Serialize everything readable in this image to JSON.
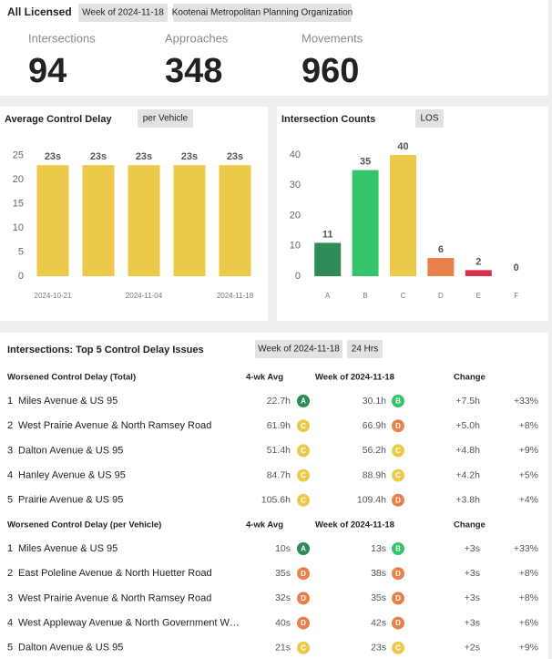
{
  "header": {
    "title": "All Licensed",
    "filters": [
      "Week of 2024-11-18",
      "Kootenai Metropolitan Planning Organization"
    ]
  },
  "kpis": [
    {
      "label": "Intersections",
      "value": 94
    },
    {
      "label": "Approaches",
      "value": 348
    },
    {
      "label": "Movements",
      "value": 960
    }
  ],
  "delay_chart": {
    "type": "bar",
    "title": "Average Control Delay",
    "filter": "per Vehicle",
    "categories": [
      "2024-10-21",
      null,
      "2024-11-04",
      null,
      "2024-11-18"
    ],
    "values": [
      23,
      23,
      23,
      23,
      23
    ],
    "value_labels": [
      "23s",
      "23s",
      "23s",
      "23s",
      "23s"
    ],
    "color": "#ecc94b",
    "ylim": [
      0,
      27
    ],
    "yticks": [
      0,
      5,
      10,
      15,
      20,
      25
    ],
    "grid": false
  },
  "counts_chart": {
    "type": "bar",
    "title": "Intersection Counts",
    "filter": "LOS",
    "categories": [
      "A",
      "B",
      "C",
      "D",
      "E",
      "F"
    ],
    "values": [
      11,
      35,
      40,
      6,
      2,
      0
    ],
    "colors": [
      "#2e8b57",
      "#34c46a",
      "#ecc94b",
      "#e8804a",
      "#d9324a",
      "#9a9a9a"
    ],
    "ylim": [
      0,
      43
    ],
    "yticks": [
      0,
      10,
      20,
      30,
      40
    ],
    "grid": false
  },
  "table": {
    "title": "Intersections: Top 5 Control Delay Issues",
    "filters": [
      "Week of 2024-11-18",
      "24 Hrs"
    ],
    "sections": [
      {
        "columns": [
          "Worsened Control Delay (Total)",
          "4-wk Avg",
          "Week of 2024-11-18",
          "Change"
        ],
        "rows": [
          {
            "rank": 1,
            "name": "Miles Avenue & US 95",
            "avg": "22.7h",
            "avg_los": "A",
            "week": "30.1h",
            "week_los": "B",
            "change": "+7.5h",
            "pct": "+33%"
          },
          {
            "rank": 2,
            "name": "West Prairie Avenue & North Ramsey Road",
            "avg": "61.9h",
            "avg_los": "C",
            "week": "66.9h",
            "week_los": "D",
            "change": "+5.0h",
            "pct": "+8%"
          },
          {
            "rank": 3,
            "name": "Dalton Avenue & US 95",
            "avg": "51.4h",
            "avg_los": "C",
            "week": "56.2h",
            "week_los": "C",
            "change": "+4.8h",
            "pct": "+9%"
          },
          {
            "rank": 4,
            "name": "Hanley Avenue & US 95",
            "avg": "84.7h",
            "avg_los": "C",
            "week": "88.9h",
            "week_los": "C",
            "change": "+4.2h",
            "pct": "+5%"
          },
          {
            "rank": 5,
            "name": "Prairie Avenue & US 95",
            "avg": "105.6h",
            "avg_los": "C",
            "week": "109.4h",
            "week_los": "D",
            "change": "+3.8h",
            "pct": "+4%"
          }
        ]
      },
      {
        "columns": [
          "Worsened Control Delay (per Vehicle)",
          "4-wk Avg",
          "Week of 2024-11-18",
          "Change"
        ],
        "rows": [
          {
            "rank": 1,
            "name": "Miles Avenue & US 95",
            "avg": "10s",
            "avg_los": "A",
            "week": "13s",
            "week_los": "B",
            "change": "+3s",
            "pct": "+33%"
          },
          {
            "rank": 2,
            "name": "East Poleline Avenue & North Huetter Road",
            "avg": "35s",
            "avg_los": "D",
            "week": "38s",
            "week_los": "D",
            "change": "+3s",
            "pct": "+8%"
          },
          {
            "rank": 3,
            "name": "West Prairie Avenue & North Ramsey Road",
            "avg": "32s",
            "avg_los": "D",
            "week": "35s",
            "week_los": "D",
            "change": "+3s",
            "pct": "+8%"
          },
          {
            "rank": 4,
            "name": "West Appleway Avenue & North Government W…",
            "avg": "40s",
            "avg_los": "D",
            "week": "42s",
            "week_los": "D",
            "change": "+3s",
            "pct": "+6%"
          },
          {
            "rank": 5,
            "name": "Dalton Avenue & US 95",
            "avg": "21s",
            "avg_los": "C",
            "week": "23s",
            "week_los": "C",
            "change": "+2s",
            "pct": "+9%"
          }
        ]
      }
    ]
  }
}
